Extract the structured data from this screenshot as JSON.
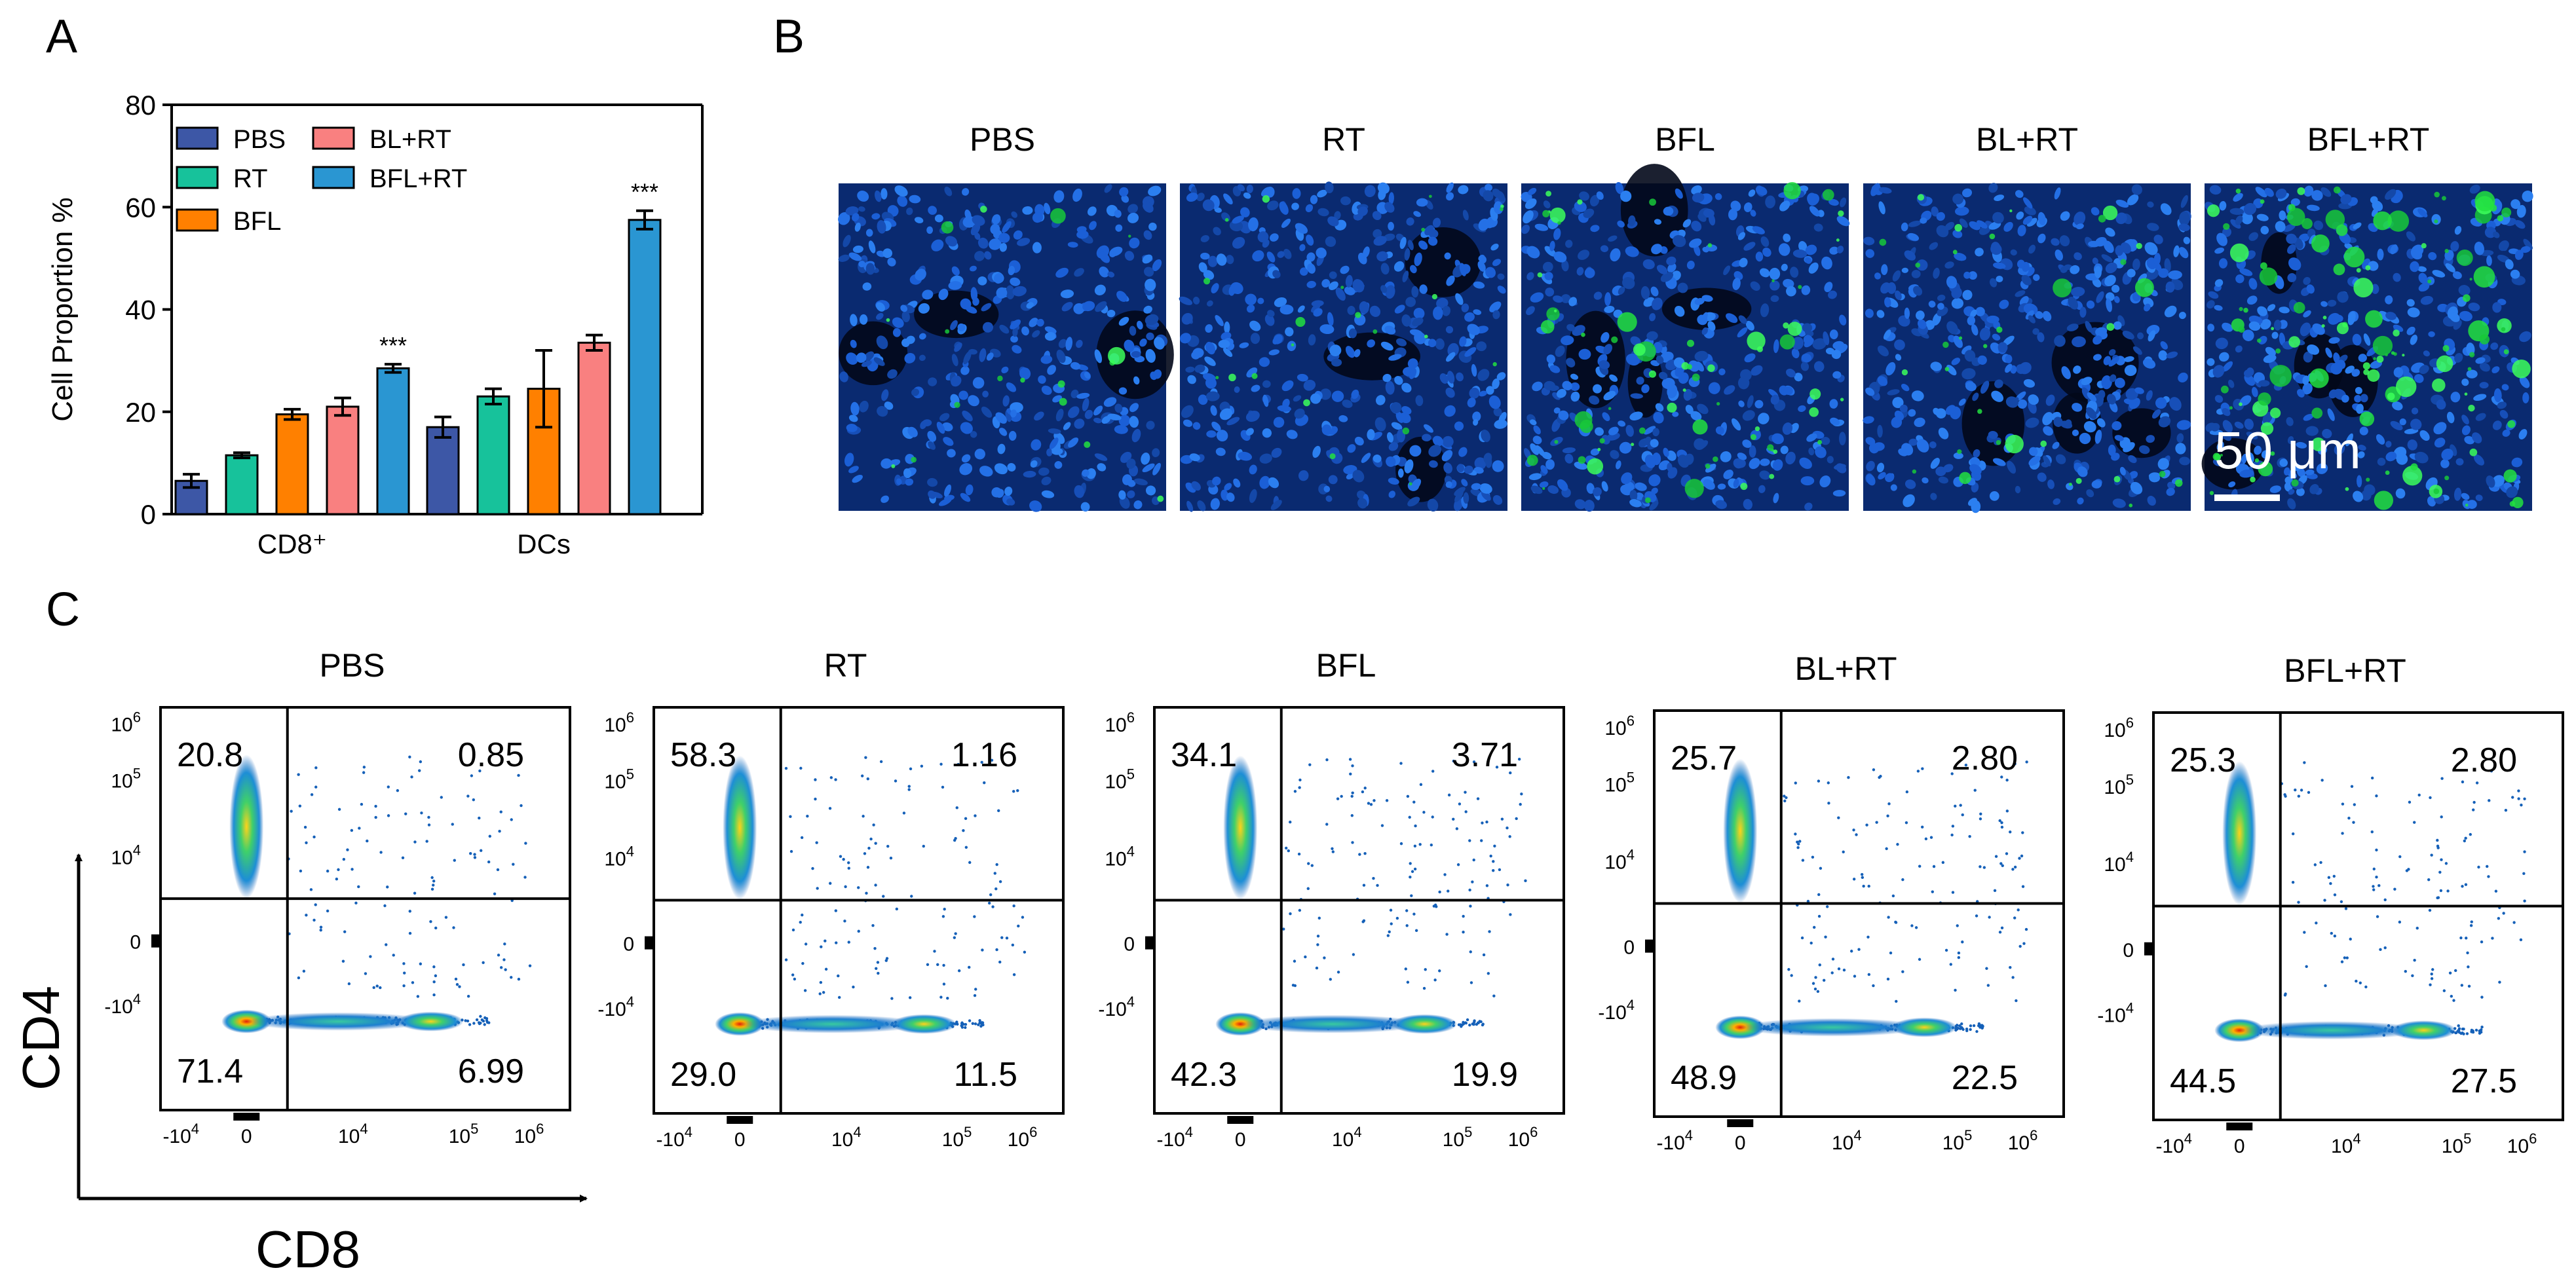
{
  "panels": {
    "A": {
      "letter": "A"
    },
    "B": {
      "letter": "B",
      "scale_bar_label": "50 μm"
    },
    "C": {
      "letter": "C",
      "y_axis_label": "CD4",
      "x_axis_label": "CD8"
    }
  },
  "chart_data": [
    {
      "id": "panel-A",
      "type": "bar",
      "title": "",
      "xlabel": "",
      "ylabel": "Cell Proportion %",
      "ylim": [
        0,
        80
      ],
      "yticks": [
        0,
        20,
        40,
        60,
        80
      ],
      "grid": false,
      "legend_position": "top-left",
      "categories": [
        "CD8⁺",
        "DCs"
      ],
      "series": [
        {
          "name": "PBS",
          "color": "#3d57a6",
          "values": [
            6.5,
            17.0
          ],
          "errors": [
            1.3,
            2.0
          ]
        },
        {
          "name": "RT",
          "color": "#17c29b",
          "values": [
            11.5,
            23.0
          ],
          "errors": [
            0.5,
            1.5
          ]
        },
        {
          "name": "BFL",
          "color": "#ff8000",
          "values": [
            19.5,
            24.5
          ],
          "errors": [
            1.0,
            7.5
          ]
        },
        {
          "name": "BL+RT",
          "color": "#f98080",
          "values": [
            21.0,
            33.5
          ],
          "errors": [
            1.7,
            1.5
          ]
        },
        {
          "name": "BFL+RT",
          "color": "#2a96d2",
          "values": [
            28.5,
            57.5
          ],
          "errors": [
            0.8,
            1.8
          ]
        }
      ],
      "annotations": [
        {
          "category": "CD8⁺",
          "series": "BFL+RT",
          "text": "***"
        },
        {
          "category": "DCs",
          "series": "BFL+RT",
          "text": "***"
        }
      ]
    },
    {
      "id": "panel-C",
      "type": "scatter",
      "title": "",
      "xlabel": "CD8",
      "ylabel": "CD4",
      "x_ticks": [
        "-10",
        "0",
        "10",
        "10",
        "10"
      ],
      "x_tick_exponents": [
        "4",
        "",
        "4",
        "5",
        "6"
      ],
      "y_ticks": [
        "10",
        "10",
        "10",
        "0",
        "-10"
      ],
      "y_tick_exponents": [
        "6",
        "5",
        "4",
        "",
        "4"
      ],
      "plots": [
        {
          "group": "PBS",
          "quadrants": {
            "upper_left": "20.8",
            "upper_right": "0.85",
            "lower_left": "71.4",
            "lower_right": "6.99"
          }
        },
        {
          "group": "RT",
          "quadrants": {
            "upper_left": "58.3",
            "upper_right": "1.16",
            "lower_left": "29.0",
            "lower_right": "11.5"
          }
        },
        {
          "group": "BFL",
          "quadrants": {
            "upper_left": "34.1",
            "upper_right": "3.71",
            "lower_left": "42.3",
            "lower_right": "19.9"
          }
        },
        {
          "group": "BL+RT",
          "quadrants": {
            "upper_left": "25.7",
            "upper_right": "2.80",
            "lower_left": "48.9",
            "lower_right": "22.5"
          }
        },
        {
          "group": "BFL+RT",
          "quadrants": {
            "upper_left": "25.3",
            "upper_right": "2.80",
            "lower_left": "44.5",
            "lower_right": "27.5"
          }
        }
      ]
    }
  ],
  "micrographs": [
    {
      "label": "PBS",
      "green_signal": 0.1,
      "nuclei_density": 0.55
    },
    {
      "label": "RT",
      "green_signal": 0.15,
      "nuclei_density": 0.75
    },
    {
      "label": "BFL",
      "green_signal": 0.55,
      "nuclei_density": 0.7
    },
    {
      "label": "BL+RT",
      "green_signal": 0.25,
      "nuclei_density": 0.8
    },
    {
      "label": "BFL+RT",
      "green_signal": 1.0,
      "nuclei_density": 0.6
    }
  ]
}
